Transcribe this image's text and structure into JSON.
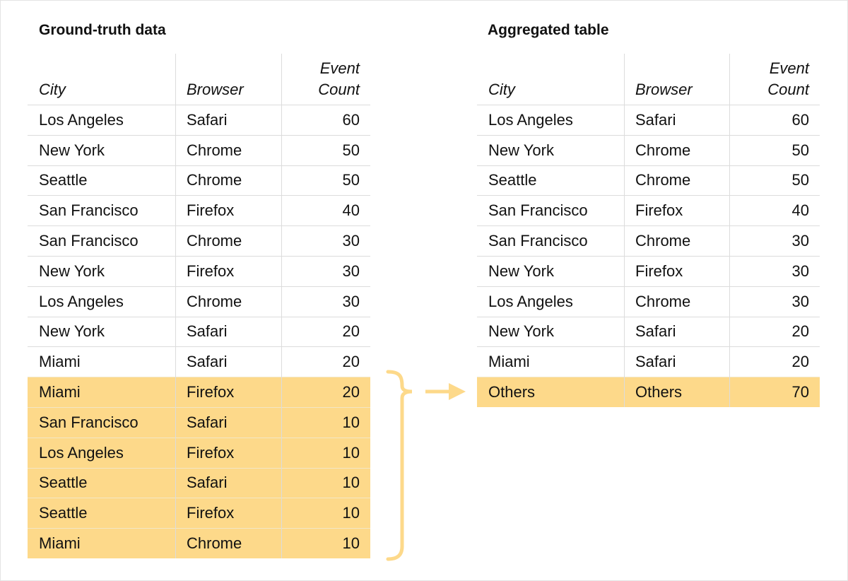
{
  "highlight_color": "#fdd98a",
  "left": {
    "title": "Ground-truth data",
    "headers": [
      "City",
      "Browser",
      "Event\nCount"
    ],
    "rows": [
      {
        "city": "Los Angeles",
        "browser": "Safari",
        "count": "60",
        "highlighted": false
      },
      {
        "city": "New York",
        "browser": "Chrome",
        "count": "50",
        "highlighted": false
      },
      {
        "city": "Seattle",
        "browser": "Chrome",
        "count": "50",
        "highlighted": false
      },
      {
        "city": "San Francisco",
        "browser": "Firefox",
        "count": "40",
        "highlighted": false
      },
      {
        "city": "San Francisco",
        "browser": "Chrome",
        "count": "30",
        "highlighted": false
      },
      {
        "city": "New York",
        "browser": "Firefox",
        "count": "30",
        "highlighted": false
      },
      {
        "city": "Los Angeles",
        "browser": "Chrome",
        "count": "30",
        "highlighted": false
      },
      {
        "city": "New York",
        "browser": "Safari",
        "count": "20",
        "highlighted": false
      },
      {
        "city": "Miami",
        "browser": "Safari",
        "count": "20",
        "highlighted": false
      },
      {
        "city": "Miami",
        "browser": "Firefox",
        "count": "20",
        "highlighted": true
      },
      {
        "city": "San Francisco",
        "browser": "Safari",
        "count": "10",
        "highlighted": true
      },
      {
        "city": "Los Angeles",
        "browser": "Firefox",
        "count": "10",
        "highlighted": true
      },
      {
        "city": "Seattle",
        "browser": "Safari",
        "count": "10",
        "highlighted": true
      },
      {
        "city": "Seattle",
        "browser": "Firefox",
        "count": "10",
        "highlighted": true
      },
      {
        "city": "Miami",
        "browser": "Chrome",
        "count": "10",
        "highlighted": true
      }
    ]
  },
  "right": {
    "title": "Aggregated table",
    "headers": [
      "City",
      "Browser",
      "Event\nCount"
    ],
    "rows": [
      {
        "city": "Los Angeles",
        "browser": "Safari",
        "count": "60",
        "highlighted": false
      },
      {
        "city": "New York",
        "browser": "Chrome",
        "count": "50",
        "highlighted": false
      },
      {
        "city": "Seattle",
        "browser": "Chrome",
        "count": "50",
        "highlighted": false
      },
      {
        "city": "San Francisco",
        "browser": "Firefox",
        "count": "40",
        "highlighted": false
      },
      {
        "city": "San Francisco",
        "browser": "Chrome",
        "count": "30",
        "highlighted": false
      },
      {
        "city": "New York",
        "browser": "Firefox",
        "count": "30",
        "highlighted": false
      },
      {
        "city": "Los Angeles",
        "browser": "Chrome",
        "count": "30",
        "highlighted": false
      },
      {
        "city": "New York",
        "browser": "Safari",
        "count": "20",
        "highlighted": false
      },
      {
        "city": "Miami",
        "browser": "Safari",
        "count": "20",
        "highlighted": false
      },
      {
        "city": "Others",
        "browser": "Others",
        "count": "70",
        "highlighted": true
      }
    ]
  },
  "connector": {
    "bracket_icon": "curly-brace",
    "arrow_icon": "right-arrow"
  }
}
